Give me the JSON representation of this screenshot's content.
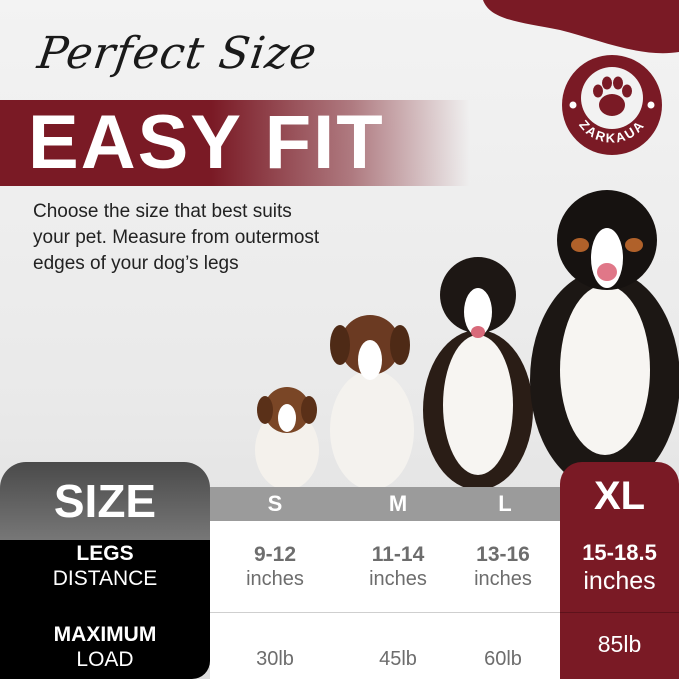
{
  "heading": {
    "script": "Perfect Size",
    "title": "EASY FIT"
  },
  "description": "Choose the size that best suits your pet. Measure from outermost edges of your dog’s legs",
  "brand": {
    "name": "ZARKAUA",
    "icon": "paw-icon"
  },
  "colors": {
    "accent": "#7a1a25",
    "header_gray": "#9b9b9b",
    "label_black": "#000000"
  },
  "table": {
    "corner_label": "SIZE",
    "rows": [
      {
        "label_bold": "LEGS",
        "label": "DISTANCE"
      },
      {
        "label_bold": "MAXIMUM",
        "label": "LOAD"
      }
    ],
    "sizes": [
      {
        "size": "S",
        "legs_range": "9-12",
        "legs_unit": "inches",
        "load": "30lb"
      },
      {
        "size": "M",
        "legs_range": "11-14",
        "legs_unit": "inches",
        "load": "45lb"
      },
      {
        "size": "L",
        "legs_range": "13-16",
        "legs_unit": "inches",
        "load": "60lb"
      },
      {
        "size": "XL",
        "legs_range": "15-18.5",
        "legs_unit": "inches",
        "load": "85lb"
      }
    ]
  }
}
